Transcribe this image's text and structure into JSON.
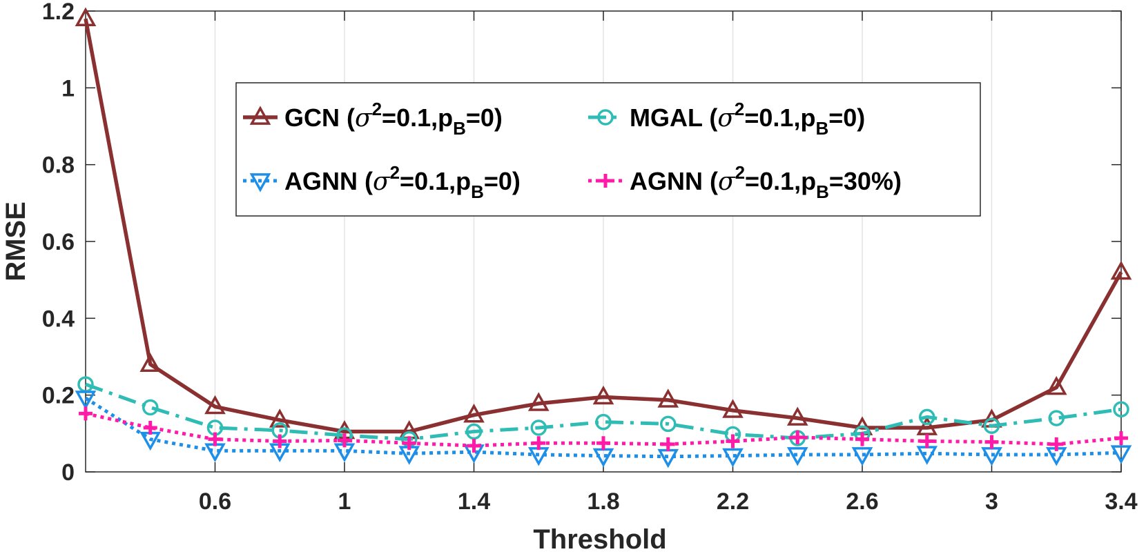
{
  "chart_data": {
    "type": "line",
    "xlabel": "Threshold",
    "ylabel": "RMSE",
    "xlim": [
      0.2,
      3.4
    ],
    "ylim": [
      0,
      1.2
    ],
    "xticks": [
      0.6,
      1,
      1.4,
      1.8,
      2.2,
      2.6,
      3,
      3.4
    ],
    "xtick_labels": [
      "0.6",
      "1",
      "1.4",
      "1.8",
      "2.2",
      "2.6",
      "3",
      "3.4"
    ],
    "yticks": [
      0,
      0.2,
      0.4,
      0.6,
      0.8,
      1,
      1.2
    ],
    "ytick_labels": [
      "0",
      "0.2",
      "0.4",
      "0.6",
      "0.8",
      "1",
      "1.2"
    ],
    "grid": "vertical",
    "legend_position": "upper-center",
    "x": [
      0.2,
      0.4,
      0.6,
      0.8,
      1.0,
      1.2,
      1.4,
      1.6,
      1.8,
      2.0,
      2.2,
      2.4,
      2.6,
      2.8,
      3.0,
      3.2,
      3.4
    ],
    "series": [
      {
        "name": "GCN (σ2=0.1,pB=0)",
        "label_parts": {
          "model": "GCN",
          "sigma": "σ",
          "sigma_exp": "2",
          "sigma_val": "=0.1,p",
          "p_sub": "B",
          "p_val": "=0)"
        },
        "color": "#8b3030",
        "marker": "triangle-up",
        "line_style": "solid",
        "values": [
          1.18,
          0.28,
          0.17,
          0.135,
          0.105,
          0.105,
          0.148,
          0.178,
          0.195,
          0.187,
          0.16,
          0.14,
          0.115,
          0.115,
          0.135,
          0.22,
          0.52
        ]
      },
      {
        "name": "MGAL (σ2=0.1,pB=0)",
        "label_parts": {
          "model": "MGAL",
          "sigma": "σ",
          "sigma_exp": "2",
          "sigma_val": "=0.1,p",
          "p_sub": "B",
          "p_val": "=0)"
        },
        "color": "#2ebcb4",
        "marker": "circle",
        "line_style": "dashdot",
        "values": [
          0.228,
          0.168,
          0.115,
          0.108,
          0.095,
          0.085,
          0.105,
          0.115,
          0.13,
          0.125,
          0.098,
          0.088,
          0.1,
          0.143,
          0.12,
          0.14,
          0.163
        ]
      },
      {
        "name": "AGNN (σ2=0.1,pB=0)",
        "label_parts": {
          "model": "AGNN",
          "sigma": "σ",
          "sigma_exp": "2",
          "sigma_val": "=0.1,p",
          "p_sub": "B",
          "p_val": "=0)"
        },
        "color": "#1e8fe8",
        "marker": "triangle-down",
        "line_style": "dotted",
        "values": [
          0.192,
          0.085,
          0.055,
          0.055,
          0.055,
          0.048,
          0.052,
          0.045,
          0.042,
          0.04,
          0.042,
          0.045,
          0.045,
          0.048,
          0.045,
          0.045,
          0.05
        ]
      },
      {
        "name": "AGNN (σ2=0.1,pB=30%)",
        "label_parts": {
          "model": "AGNN",
          "sigma": "σ",
          "sigma_exp": "2",
          "sigma_val": "=0.1,p",
          "p_sub": "B",
          "p_val": "=30%)"
        },
        "color": "#ff1aa8",
        "marker": "plus",
        "line_style": "dotted",
        "values": [
          0.152,
          0.115,
          0.085,
          0.08,
          0.082,
          0.075,
          0.068,
          0.075,
          0.075,
          0.072,
          0.08,
          0.09,
          0.085,
          0.08,
          0.078,
          0.072,
          0.088
        ]
      }
    ]
  }
}
